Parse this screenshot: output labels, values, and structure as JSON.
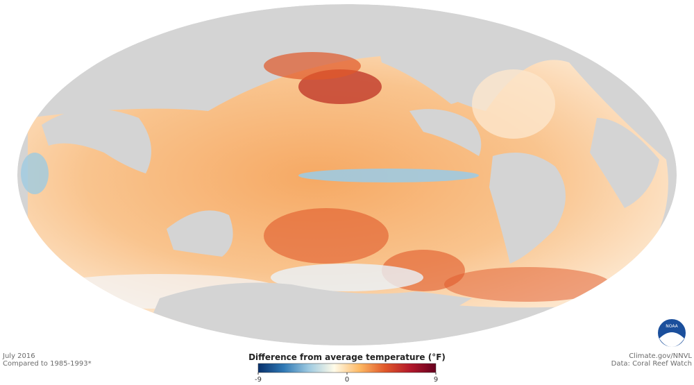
{
  "header": {
    "date": "July 2016",
    "baseline": "Compared to 1985-1993*"
  },
  "credits": {
    "site": "Climate.gov/NNVL",
    "source": "Data: Coral Reef Watch"
  },
  "logo": {
    "text": "NOAA"
  },
  "legend": {
    "title": "Difference from average temperature (°F)",
    "range": [
      -9,
      9
    ],
    "ticks": [
      -9,
      0,
      9
    ],
    "colors": [
      "#08306b",
      "#2f78b4",
      "#9ecae1",
      "#fffbe8",
      "#fdb863",
      "#e0582a",
      "#b2182b",
      "#67001f"
    ]
  }
}
